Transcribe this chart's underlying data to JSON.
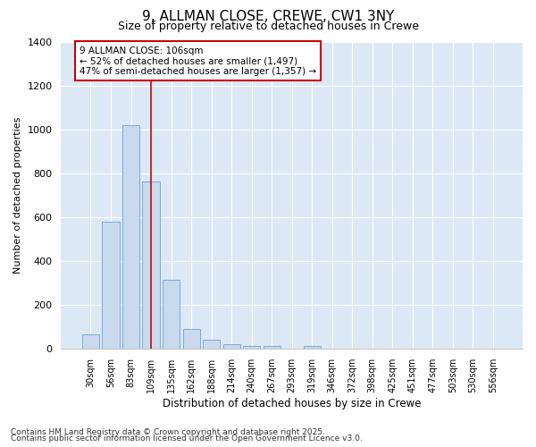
{
  "title1": "9, ALLMAN CLOSE, CREWE, CW1 3NY",
  "title2": "Size of property relative to detached houses in Crewe",
  "xlabel": "Distribution of detached houses by size in Crewe",
  "ylabel": "Number of detached properties",
  "bar_labels": [
    "30sqm",
    "56sqm",
    "83sqm",
    "109sqm",
    "135sqm",
    "162sqm",
    "188sqm",
    "214sqm",
    "240sqm",
    "267sqm",
    "293sqm",
    "319sqm",
    "346sqm",
    "372sqm",
    "398sqm",
    "425sqm",
    "451sqm",
    "477sqm",
    "503sqm",
    "530sqm",
    "556sqm"
  ],
  "bar_values": [
    65,
    580,
    1020,
    760,
    315,
    90,
    40,
    20,
    10,
    10,
    0,
    10,
    0,
    0,
    0,
    0,
    0,
    0,
    0,
    0,
    0
  ],
  "bar_color": "#c9d9ee",
  "bar_edge_color": "#7aadd4",
  "ylim": [
    0,
    1400
  ],
  "yticks": [
    0,
    200,
    400,
    600,
    800,
    1000,
    1200,
    1400
  ],
  "vline_x_index": 3,
  "vline_color": "#cc0000",
  "annotation_text": "9 ALLMAN CLOSE: 106sqm\n← 52% of detached houses are smaller (1,497)\n47% of semi-detached houses are larger (1,357) →",
  "footer1": "Contains HM Land Registry data © Crown copyright and database right 2025.",
  "footer2": "Contains public sector information licensed under the Open Government Licence v3.0.",
  "bg_color": "#ffffff",
  "plot_bg_color": "#dce8f5"
}
